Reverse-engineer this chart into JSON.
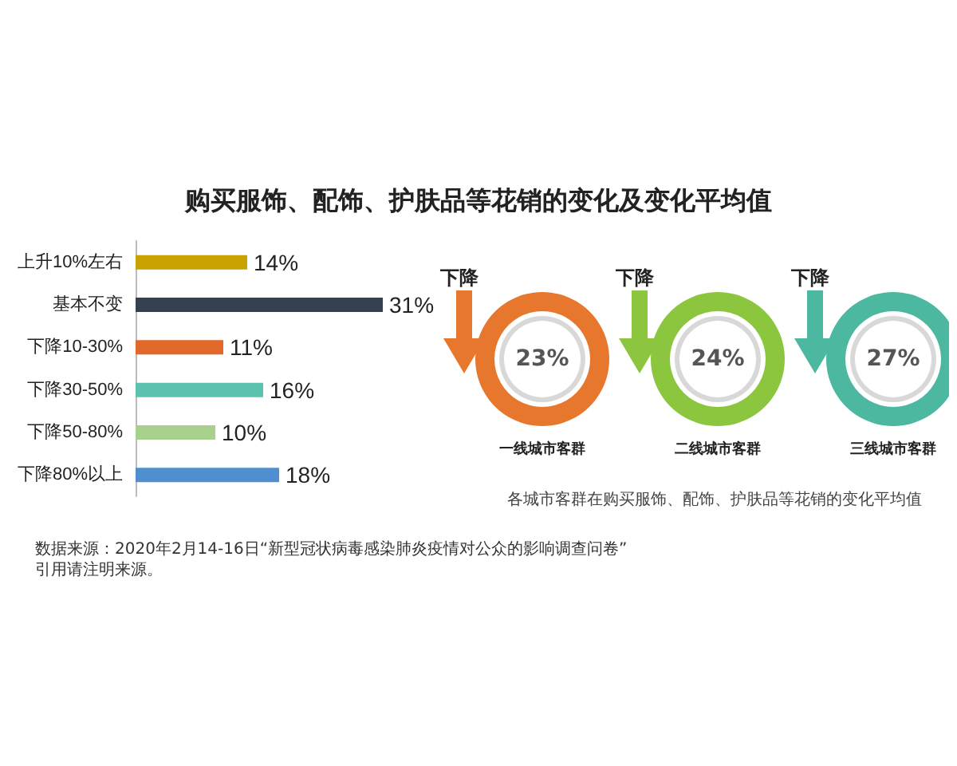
{
  "chart_data": [
    {
      "type": "bar",
      "orientation": "horizontal",
      "title": "购买服饰、配饰、护肤品等花销的变化及变化平均值",
      "categories": [
        "上升10%左右",
        "基本不变",
        "下降10-30%",
        "下降30-50%",
        "下降50-80%",
        "下降80%以上"
      ],
      "values": [
        14,
        31,
        11,
        16,
        10,
        18
      ],
      "colors": [
        "#c9a100",
        "#35414f",
        "#e2672b",
        "#5bc2b0",
        "#a9d18e",
        "#4f8fd0"
      ],
      "value_labels": [
        "14%",
        "31%",
        "11%",
        "16%",
        "10%",
        "18%"
      ],
      "annotations": [
        "数据来源：2020年2月14-16日“新型冠状病毒感染肺炎疫情对公众的影响调查问卷”",
        "引用请注明来源。"
      ]
    },
    {
      "type": "other",
      "categories": [
        "一线城市客群",
        "二线城市客群",
        "三线城市客群"
      ],
      "values": [
        23,
        24,
        27
      ],
      "value_labels": [
        "23%",
        "24%",
        "27%"
      ],
      "colors": [
        "#e8772e",
        "#8cc63f",
        "#4db8a0"
      ],
      "annotations": [
        "下降",
        "下降",
        "下降",
        "各城市客群在购买服饰、配饰、护肤品等花销的变化平均值"
      ]
    }
  ]
}
